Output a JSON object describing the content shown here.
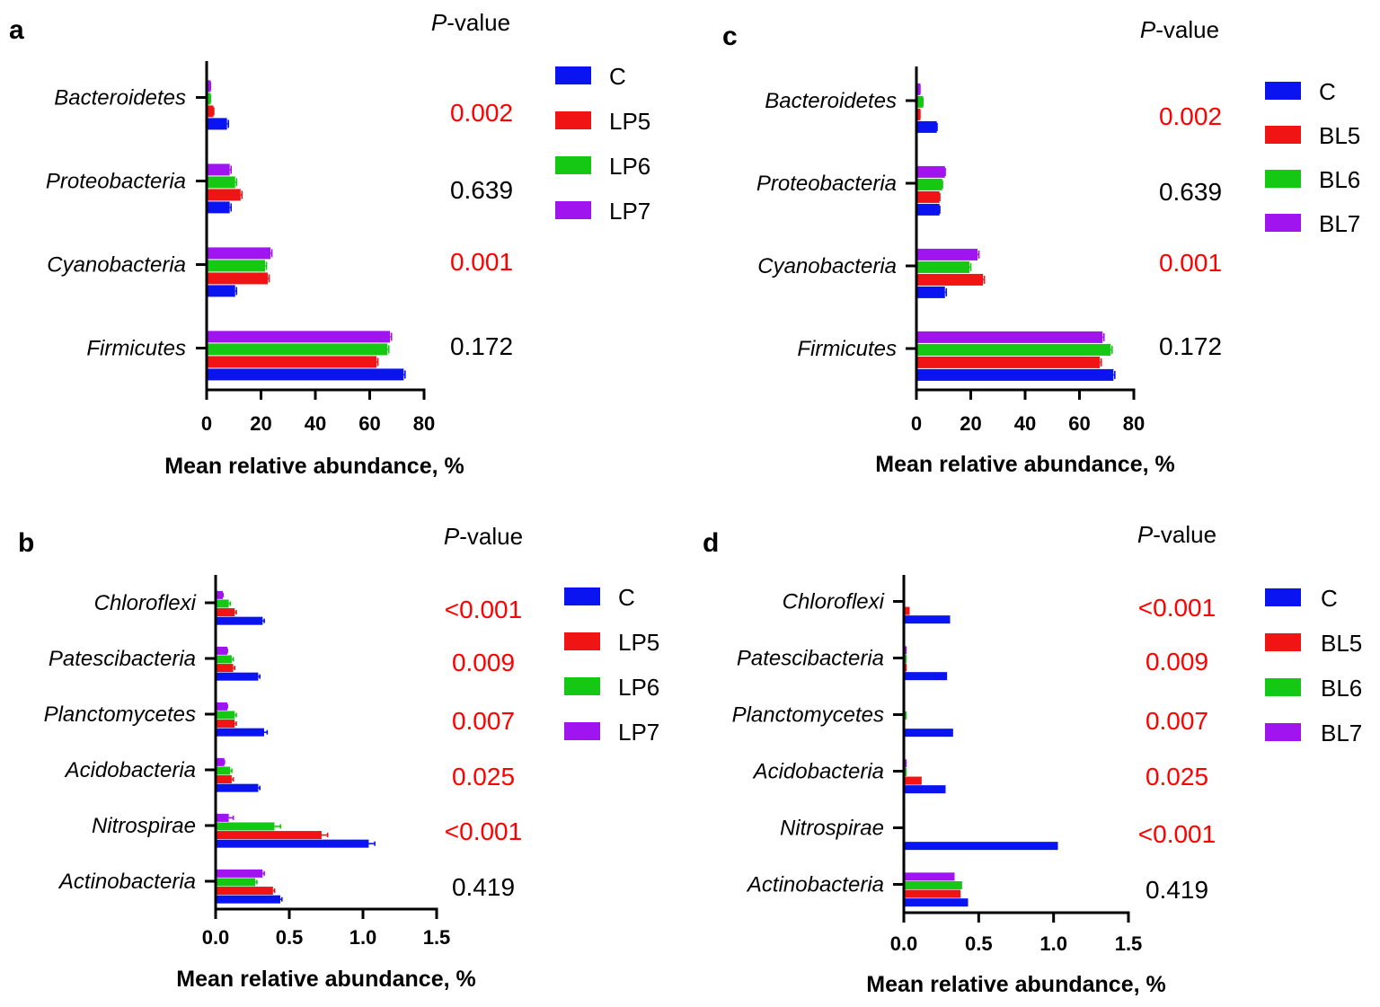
{
  "colors": {
    "C": "#0a14f0",
    "LP5": "#f01414",
    "LP6": "#14c814",
    "LP7": "#a014f0",
    "BL5": "#f01414",
    "BL6": "#14c814",
    "BL7": "#a014f0",
    "significant": "#ff0000",
    "nonsignificant": "#000000"
  },
  "chart_data": [
    {
      "panel": "a",
      "type": "bar",
      "orientation": "horizontal",
      "categories": [
        "Bacteroidetes",
        "Proteobacteria",
        "Cyanobacteria",
        "Firmicutes"
      ],
      "series": [
        {
          "name": "C",
          "values": [
            7,
            8,
            10,
            72
          ],
          "errors": [
            1,
            1,
            1,
            1
          ]
        },
        {
          "name": "LP5",
          "values": [
            2,
            12,
            22,
            62
          ],
          "errors": [
            0.6,
            1,
            1,
            1
          ]
        },
        {
          "name": "LP6",
          "values": [
            1,
            10,
            21,
            66
          ],
          "errors": [
            0.4,
            1,
            1,
            1
          ]
        },
        {
          "name": "LP7",
          "values": [
            1,
            8,
            23,
            67
          ],
          "errors": [
            0.4,
            1,
            1,
            1
          ]
        }
      ],
      "xlabel": "Mean relative abundance, %",
      "xlim": [
        0,
        80
      ],
      "xticks": [
        "0",
        "20",
        "40",
        "60",
        "80"
      ],
      "pvalue_header": {
        "italic": "P",
        "rest": "-value"
      },
      "pvalues": [
        "0.002",
        "0.639",
        "0.001",
        "0.172"
      ],
      "pvalue_significant": [
        true,
        false,
        true,
        false
      ]
    },
    {
      "panel": "b",
      "type": "bar",
      "orientation": "horizontal",
      "categories": [
        "Chloroflexi",
        "Patescibacteria",
        "Planctomycetes",
        "Acidobacteria",
        "Nitrospirae",
        "Actinobacteria"
      ],
      "series": [
        {
          "name": "C",
          "values": [
            0.31,
            0.28,
            0.32,
            0.28,
            1.03,
            0.43
          ],
          "errors": [
            0.02,
            0.02,
            0.03,
            0.02,
            0.05,
            0.02
          ]
        },
        {
          "name": "LP5",
          "values": [
            0.12,
            0.11,
            0.12,
            0.1,
            0.71,
            0.38
          ],
          "errors": [
            0.02,
            0.02,
            0.02,
            0.02,
            0.05,
            0.02
          ]
        },
        {
          "name": "LP6",
          "values": [
            0.08,
            0.1,
            0.12,
            0.09,
            0.39,
            0.26
          ],
          "errors": [
            0.02,
            0.02,
            0.02,
            0.02,
            0.05,
            0.02
          ]
        },
        {
          "name": "LP7",
          "values": [
            0.04,
            0.07,
            0.07,
            0.05,
            0.08,
            0.31
          ],
          "errors": [
            0.01,
            0.01,
            0.01,
            0.01,
            0.04,
            0.02
          ]
        }
      ],
      "xlabel": "Mean relative abundance, %",
      "xlim": [
        0,
        1.5
      ],
      "xticks": [
        "0.0",
        "0.5",
        "1.0",
        "1.5"
      ],
      "pvalue_header": {
        "italic": "P",
        "rest": "-value"
      },
      "pvalues": [
        "<0.001",
        "0.009",
        "0.007",
        "0.025",
        "<0.001",
        "0.419"
      ],
      "pvalue_significant": [
        true,
        true,
        true,
        true,
        true,
        false
      ]
    },
    {
      "panel": "c",
      "type": "bar",
      "orientation": "horizontal",
      "categories": [
        "Bacteroidetes",
        "Proteobacteria",
        "Cyanobacteria",
        "Firmicutes"
      ],
      "series": [
        {
          "name": "C",
          "values": [
            7,
            8,
            10,
            72
          ],
          "errors": [
            0.6,
            0.6,
            1,
            1
          ]
        },
        {
          "name": "BL5",
          "values": [
            1,
            8,
            24,
            67
          ],
          "errors": [
            0.3,
            0.6,
            1,
            1
          ]
        },
        {
          "name": "BL6",
          "values": [
            2,
            9,
            19,
            71
          ],
          "errors": [
            0.4,
            0.6,
            1,
            1
          ]
        },
        {
          "name": "BL7",
          "values": [
            1,
            10,
            22,
            68
          ],
          "errors": [
            0.3,
            0.6,
            1,
            1
          ]
        }
      ],
      "xlabel": "Mean relative abundance, %",
      "xlim": [
        0,
        80
      ],
      "xticks": [
        "0",
        "20",
        "40",
        "60",
        "80"
      ],
      "pvalue_header": {
        "italic": "P",
        "rest": "-value"
      },
      "pvalues": [
        "0.002",
        "0.639",
        "0.001",
        "0.172"
      ],
      "pvalue_significant": [
        true,
        false,
        true,
        false
      ]
    },
    {
      "panel": "d",
      "type": "bar",
      "orientation": "horizontal",
      "categories": [
        "Chloroflexi",
        "Patescibacteria",
        "Planctomycetes",
        "Acidobacteria",
        "Nitrospirae",
        "Actinobacteria"
      ],
      "series": [
        {
          "name": "C",
          "values": [
            0.3,
            0.28,
            0.32,
            0.27,
            1.02,
            0.42
          ],
          "errors": [
            0,
            0,
            0,
            0,
            0,
            0
          ]
        },
        {
          "name": "BL5",
          "values": [
            0.03,
            0.01,
            0,
            0.11,
            0,
            0.37
          ],
          "errors": [
            0,
            0,
            0,
            0,
            0,
            0
          ]
        },
        {
          "name": "BL6",
          "values": [
            0,
            0.01,
            0.01,
            0.01,
            0,
            0.38
          ],
          "errors": [
            0,
            0,
            0,
            0,
            0,
            0
          ]
        },
        {
          "name": "BL7",
          "values": [
            0,
            0.01,
            0,
            0.01,
            0,
            0.33
          ],
          "errors": [
            0,
            0,
            0,
            0,
            0,
            0
          ]
        }
      ],
      "xlabel": "Mean relative abundance, %",
      "xlim": [
        0,
        1.5
      ],
      "xticks": [
        "0.0",
        "0.5",
        "1.0",
        "1.5"
      ],
      "pvalue_header": {
        "italic": "P",
        "rest": "-value"
      },
      "pvalues": [
        "<0.001",
        "0.009",
        "0.007",
        "0.025",
        "<0.001",
        "0.419"
      ],
      "pvalue_significant": [
        true,
        true,
        true,
        true,
        true,
        false
      ]
    }
  ]
}
